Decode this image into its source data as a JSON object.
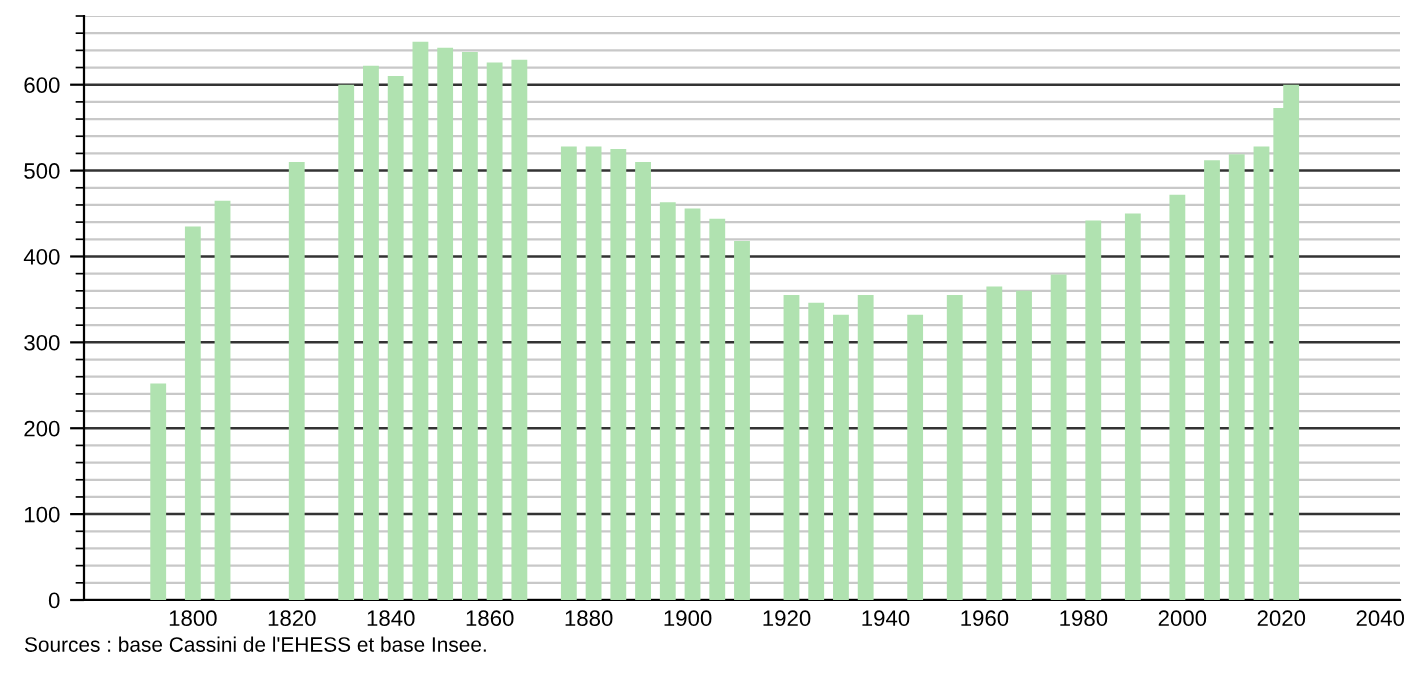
{
  "chart_data": {
    "type": "bar",
    "x": [
      1793,
      1800,
      1806,
      1821,
      1831,
      1836,
      1841,
      1846,
      1851,
      1856,
      1861,
      1866,
      1876,
      1881,
      1886,
      1891,
      1896,
      1901,
      1906,
      1911,
      1921,
      1926,
      1931,
      1936,
      1946,
      1954,
      1962,
      1968,
      1975,
      1982,
      1990,
      1999,
      2006,
      2011,
      2016,
      2020,
      2022
    ],
    "values": [
      252,
      435,
      465,
      510,
      600,
      622,
      610,
      650,
      643,
      638,
      626,
      629,
      528,
      528,
      525,
      510,
      463,
      456,
      444,
      418,
      355,
      346,
      332,
      355,
      332,
      355,
      365,
      360,
      379,
      442,
      450,
      472,
      512,
      519,
      528,
      573,
      600
    ],
    "color": "#b0e2b0",
    "xlim": [
      1778,
      2044
    ],
    "xticks": [
      1800,
      1820,
      1840,
      1860,
      1880,
      1900,
      1920,
      1940,
      1960,
      1980,
      2000,
      2020,
      2040
    ],
    "ylim": [
      0,
      680
    ],
    "yticks": [
      0,
      {
        "value": 20,
        "label": null
      },
      {
        "value": 40,
        "label": null
      },
      {
        "value": 60,
        "label": null
      },
      {
        "value": 80,
        "label": null
      },
      100,
      {
        "value": 120,
        "label": null
      },
      {
        "value": 140,
        "label": null
      },
      {
        "value": 160,
        "label": null
      },
      {
        "value": 180,
        "label": null
      },
      200,
      {
        "value": 220,
        "label": null
      },
      {
        "value": 240,
        "label": null
      },
      {
        "value": 260,
        "label": null
      },
      {
        "value": 280,
        "label": null
      },
      300,
      {
        "value": 320,
        "label": null
      },
      {
        "value": 340,
        "label": null
      },
      {
        "value": 360,
        "label": null
      },
      {
        "value": 380,
        "label": null
      },
      400,
      {
        "value": 420,
        "label": null
      },
      {
        "value": 440,
        "label": null
      },
      {
        "value": 460,
        "label": null
      },
      {
        "value": 480,
        "label": null
      },
      500,
      {
        "value": 520,
        "label": null
      },
      {
        "value": 540,
        "label": null
      },
      {
        "value": 560,
        "label": null
      },
      {
        "value": 580,
        "label": null
      },
      600,
      {
        "value": 620,
        "label": null
      },
      {
        "value": 640,
        "label": null
      },
      {
        "value": 660,
        "label": null
      },
      {
        "value": 680,
        "label": null
      }
    ],
    "grid": "y",
    "annotations": [
      "Sources : base Cassini de l'EHESS et base Insee."
    ]
  }
}
